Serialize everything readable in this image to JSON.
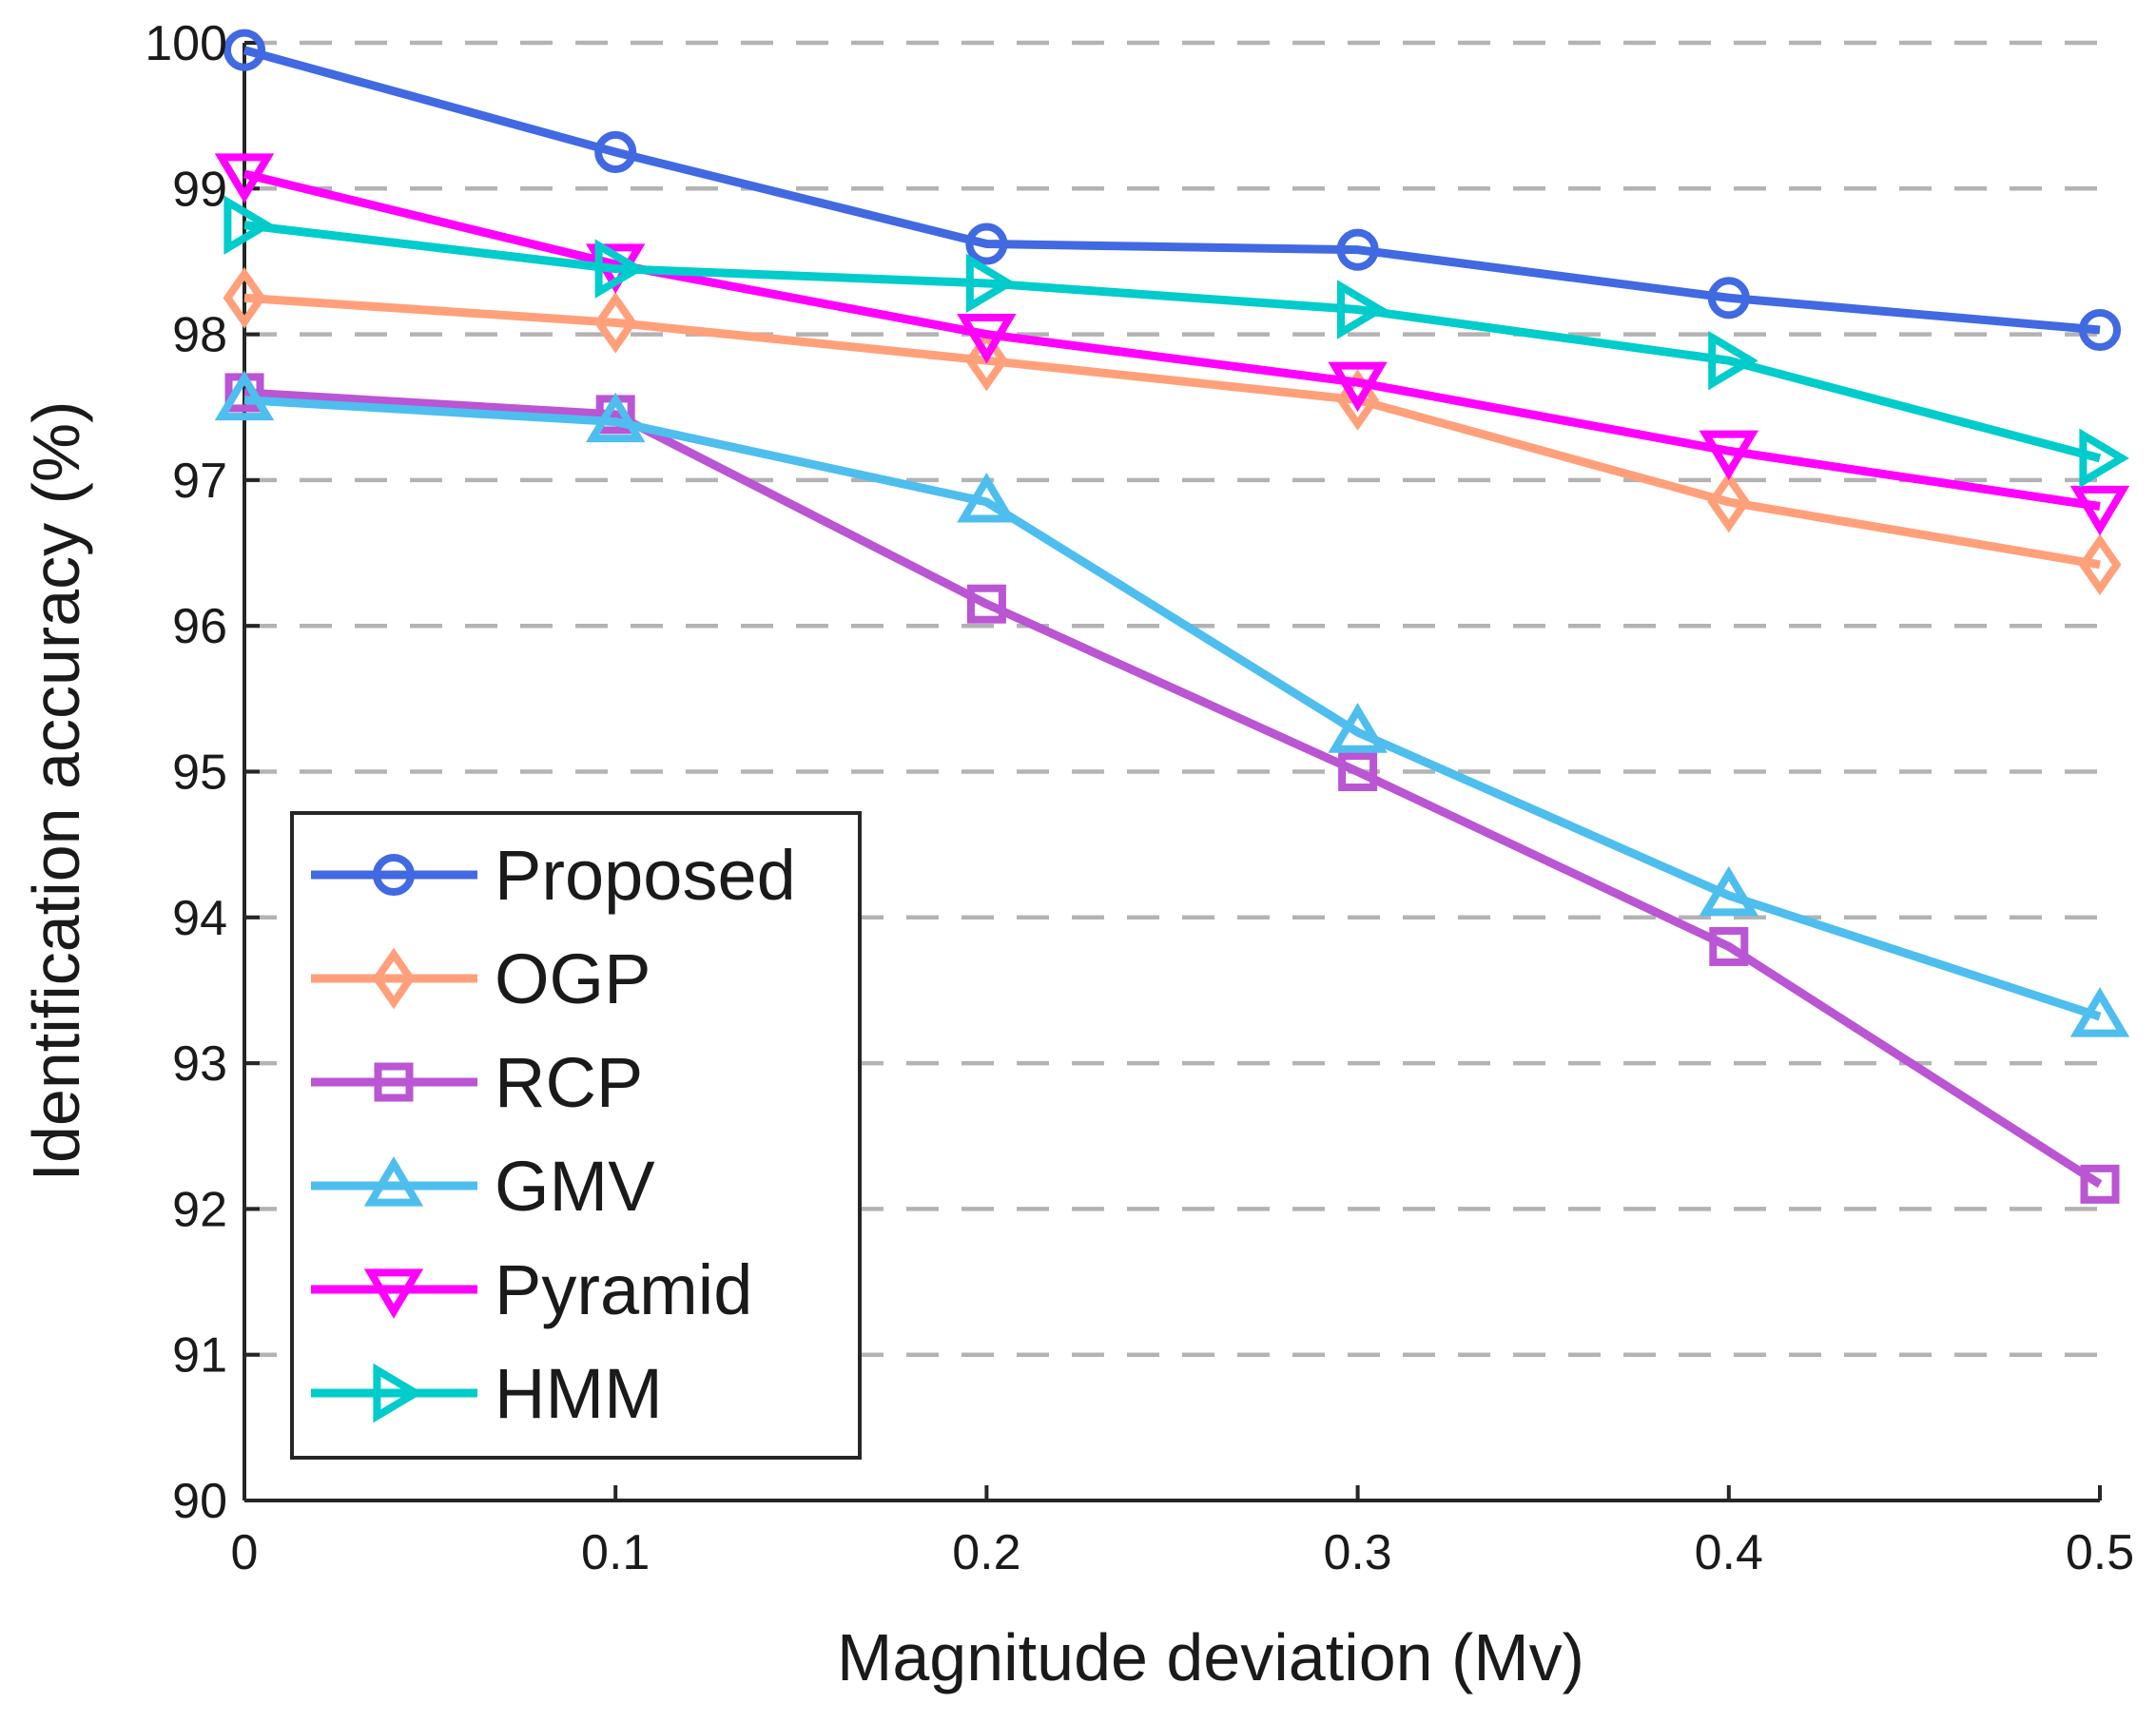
{
  "chart_data": {
    "type": "line",
    "title": "",
    "xlabel": "Magnitude deviation (Mv)",
    "ylabel": "Identification accuracy (%)",
    "x": [
      0,
      0.1,
      0.2,
      0.3,
      0.4,
      0.5
    ],
    "x_tick_labels": [
      "0",
      "0.1",
      "0.2",
      "0.3",
      "0.4",
      "0.5"
    ],
    "y_tick_labels": [
      "90",
      "91",
      "92",
      "93",
      "94",
      "95",
      "96",
      "97",
      "98",
      "99",
      "100"
    ],
    "xlim": [
      0,
      0.5
    ],
    "ylim": [
      90,
      100
    ],
    "grid": "horizontal dashed",
    "legend_position": "bottom-left",
    "series": [
      {
        "name": "Proposed",
        "color": "#4169e1",
        "marker": "circle",
        "values": [
          99.95,
          99.25,
          98.62,
          98.58,
          98.25,
          98.03
        ]
      },
      {
        "name": "OGP",
        "color": "#ffa07a",
        "marker": "diamond",
        "values": [
          98.25,
          98.08,
          97.82,
          97.55,
          96.85,
          96.42
        ]
      },
      {
        "name": "RCP",
        "color": "#ba55d3",
        "marker": "square",
        "values": [
          97.6,
          97.45,
          96.15,
          95.0,
          93.8,
          92.17
        ]
      },
      {
        "name": "GMV",
        "color": "#4dbeee",
        "marker": "triangle-up",
        "values": [
          97.55,
          97.4,
          96.85,
          95.27,
          94.15,
          93.32
        ]
      },
      {
        "name": "Pyramid",
        "color": "#ff00ff",
        "marker": "triangle-down",
        "values": [
          99.1,
          98.48,
          98.0,
          97.67,
          97.2,
          96.82
        ]
      },
      {
        "name": "HMM",
        "color": "#00cccc",
        "marker": "triangle-right",
        "values": [
          98.75,
          98.45,
          98.35,
          98.17,
          97.82,
          97.15
        ]
      }
    ]
  }
}
